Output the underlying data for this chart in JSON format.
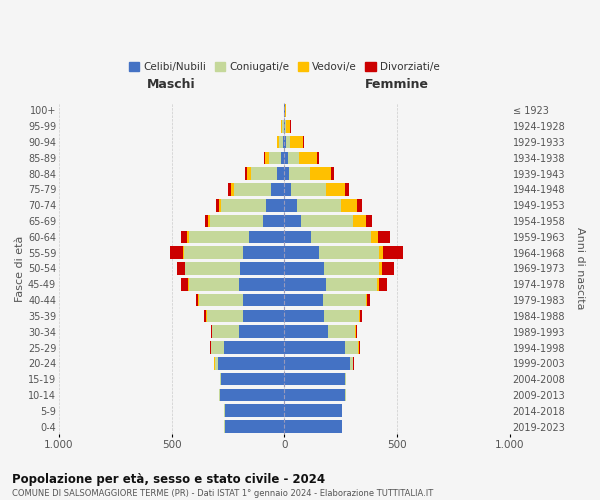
{
  "age_groups": [
    "0-4",
    "5-9",
    "10-14",
    "15-19",
    "20-24",
    "25-29",
    "30-34",
    "35-39",
    "40-44",
    "45-49",
    "50-54",
    "55-59",
    "60-64",
    "65-69",
    "70-74",
    "75-79",
    "80-84",
    "85-89",
    "90-94",
    "95-99",
    "100+"
  ],
  "birth_years": [
    "2019-2023",
    "2014-2018",
    "2009-2013",
    "2004-2008",
    "1999-2003",
    "1994-1998",
    "1989-1993",
    "1984-1988",
    "1979-1983",
    "1974-1978",
    "1969-1973",
    "1964-1968",
    "1959-1963",
    "1954-1958",
    "1949-1953",
    "1944-1948",
    "1939-1943",
    "1934-1938",
    "1929-1933",
    "1924-1928",
    "≤ 1923"
  ],
  "males": {
    "celibi": [
      265,
      265,
      285,
      280,
      295,
      270,
      200,
      185,
      185,
      200,
      195,
      185,
      155,
      95,
      80,
      60,
      35,
      15,
      5,
      3,
      2
    ],
    "coniugati": [
      1,
      1,
      3,
      5,
      15,
      55,
      120,
      160,
      195,
      225,
      245,
      260,
      270,
      235,
      200,
      165,
      115,
      55,
      20,
      8,
      2
    ],
    "vedovi": [
      0,
      0,
      0,
      0,
      1,
      1,
      2,
      2,
      2,
      2,
      3,
      4,
      5,
      8,
      10,
      12,
      15,
      15,
      8,
      3,
      0
    ],
    "divorziati": [
      0,
      0,
      0,
      0,
      2,
      5,
      5,
      8,
      12,
      30,
      35,
      60,
      30,
      15,
      15,
      12,
      10,
      5,
      2,
      0,
      0
    ]
  },
  "females": {
    "nubili": [
      255,
      255,
      270,
      270,
      290,
      270,
      195,
      175,
      170,
      185,
      175,
      155,
      120,
      75,
      55,
      30,
      20,
      15,
      8,
      3,
      2
    ],
    "coniugate": [
      1,
      1,
      3,
      5,
      15,
      58,
      120,
      155,
      190,
      225,
      245,
      265,
      265,
      230,
      195,
      155,
      95,
      50,
      18,
      5,
      2
    ],
    "vedove": [
      0,
      0,
      0,
      0,
      1,
      1,
      2,
      3,
      5,
      8,
      12,
      18,
      30,
      55,
      70,
      85,
      90,
      80,
      55,
      18,
      2
    ],
    "divorziate": [
      0,
      0,
      0,
      0,
      2,
      5,
      5,
      10,
      15,
      35,
      55,
      90,
      55,
      28,
      22,
      18,
      15,
      8,
      5,
      2,
      0
    ]
  },
  "colors": {
    "celibi": "#4472c4",
    "coniugati": "#c5d89a",
    "vedovi": "#ffc000",
    "divorziati": "#cc0000"
  },
  "title": "Popolazione per età, sesso e stato civile - 2024",
  "subtitle": "COMUNE DI SALSOMAGGIORE TERME (PR) - Dati ISTAT 1° gennaio 2024 - Elaborazione TUTTITALIA.IT",
  "ylabel_left": "Fasce di età",
  "ylabel_right": "Anni di nascita",
  "xlabel_maschi": "Maschi",
  "xlabel_femmine": "Femmine",
  "xlim": 1000,
  "bg_color": "#f5f5f5",
  "grid_color": "#cccccc",
  "legend_labels": [
    "Celibi/Nubili",
    "Coniugati/e",
    "Vedovi/e",
    "Divorziati/e"
  ]
}
